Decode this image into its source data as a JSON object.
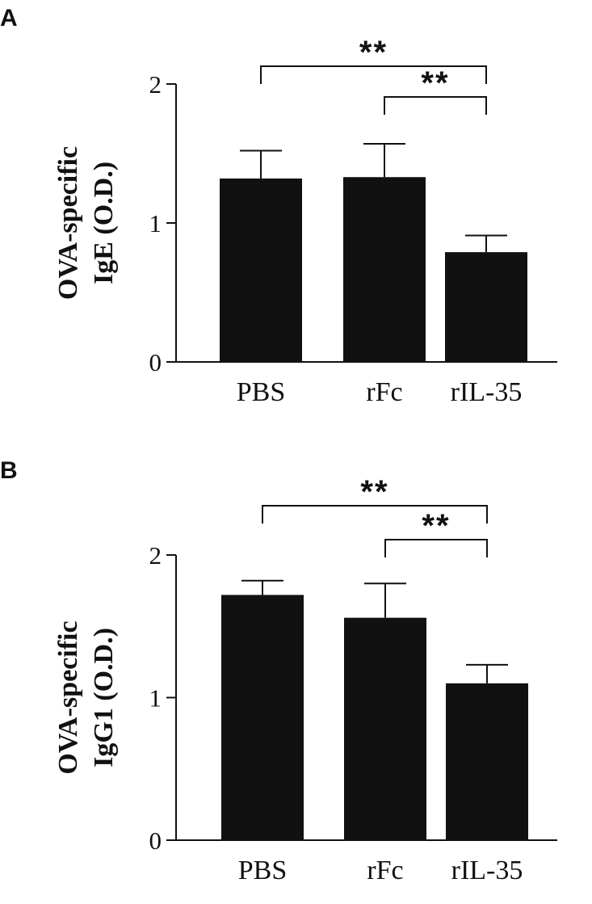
{
  "panels": [
    {
      "letter": "A",
      "chart_data": {
        "type": "bar",
        "categories": [
          "PBS",
          "rFc",
          "rIL-35"
        ],
        "values": [
          1.32,
          1.33,
          0.79
        ],
        "errors": [
          0.2,
          0.24,
          0.12
        ],
        "ylabel_lines": [
          "OVA-specific",
          "IgE (O.D.)"
        ],
        "ylim": [
          0,
          2
        ],
        "yticks": [
          0,
          1,
          2
        ],
        "bar_color": "#111111",
        "significance": [
          {
            "from": 0,
            "to": 2,
            "label": "**"
          },
          {
            "from": 1,
            "to": 2,
            "label": "**"
          }
        ]
      }
    },
    {
      "letter": "B",
      "chart_data": {
        "type": "bar",
        "categories": [
          "PBS",
          "rFc",
          "rIL-35"
        ],
        "values": [
          1.72,
          1.56,
          1.1
        ],
        "errors": [
          0.1,
          0.24,
          0.13
        ],
        "ylabel_lines": [
          "OVA-specific",
          "IgG1 (O.D.)"
        ],
        "ylim": [
          0,
          2
        ],
        "yticks": [
          0,
          1,
          2
        ],
        "bar_color": "#111111",
        "significance": [
          {
            "from": 0,
            "to": 2,
            "label": "**"
          },
          {
            "from": 1,
            "to": 2,
            "label": "**"
          }
        ]
      }
    }
  ]
}
